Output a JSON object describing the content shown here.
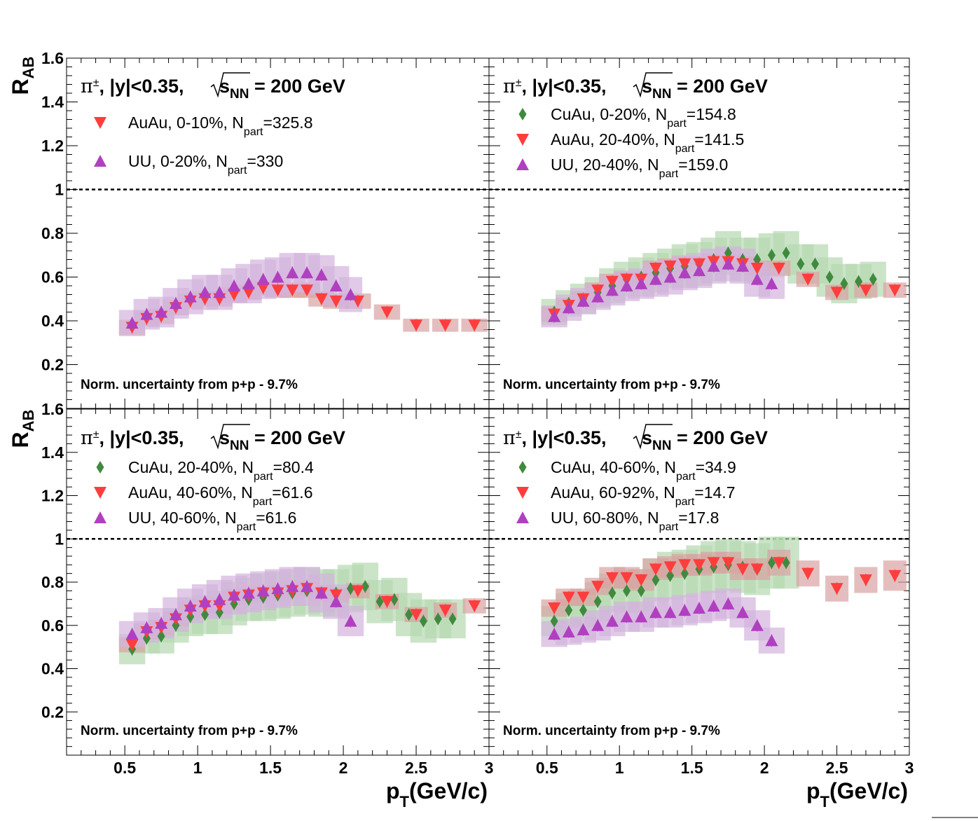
{
  "chart_data": [
    {
      "type": "scatter",
      "title_prefix": "π",
      "title_sup": "±",
      "title_mid": ",  |y|<0.35,  ",
      "title_sqrt": "s",
      "title_sqrt_sub": "NN",
      "title_suffix": " = 200 GeV",
      "norm_text": "Norm. uncertainty from p+p - 9.7%",
      "ylabel": "R",
      "ylabel_sub": "AB",
      "xlim": [
        0.1,
        3.0
      ],
      "ylim": [
        0.0,
        1.6
      ],
      "xticks": [
        "0.5",
        "1",
        "1.5",
        "2",
        "2.5",
        "3"
      ],
      "yticks": [
        "0.2",
        "0.4",
        "0.6",
        "0.8",
        "1",
        "1.2",
        "1.4",
        "1.6"
      ],
      "reference_line": 1,
      "series": [
        {
          "name": "AuAu, 0-10%, N",
          "name_sub": "part",
          "name_tail": "=325.8",
          "marker": "triangle-down",
          "color": "#ff3d3d",
          "band": "#d9a3a3",
          "x": [
            0.55,
            0.65,
            0.75,
            0.85,
            0.95,
            1.05,
            1.15,
            1.25,
            1.35,
            1.45,
            1.55,
            1.65,
            1.75,
            1.85,
            1.95,
            2.1,
            2.3,
            2.5,
            2.7,
            2.9
          ],
          "y": [
            0.37,
            0.41,
            0.42,
            0.46,
            0.49,
            0.5,
            0.5,
            0.52,
            0.53,
            0.55,
            0.54,
            0.54,
            0.54,
            0.5,
            0.49,
            0.49,
            0.44,
            0.38,
            0.38,
            0.38
          ],
          "sys": [
            0.035,
            0.035,
            0.035,
            0.035,
            0.035,
            0.035,
            0.035,
            0.035,
            0.035,
            0.035,
            0.035,
            0.035,
            0.035,
            0.035,
            0.035,
            0.035,
            0.035,
            0.03,
            0.03,
            0.03
          ]
        },
        {
          "name": "UU, 0-20%, N",
          "name_sub": "part",
          "name_tail": "=330",
          "marker": "triangle-up",
          "color": "#b040c0",
          "band": "#d3b3dd",
          "x": [
            0.55,
            0.65,
            0.75,
            0.85,
            0.95,
            1.05,
            1.15,
            1.25,
            1.35,
            1.45,
            1.55,
            1.65,
            1.75,
            1.85,
            1.95,
            2.05
          ],
          "y": [
            0.39,
            0.43,
            0.44,
            0.48,
            0.51,
            0.53,
            0.53,
            0.56,
            0.57,
            0.59,
            0.6,
            0.62,
            0.62,
            0.61,
            0.56,
            0.52
          ],
          "sys": [
            0.06,
            0.07,
            0.07,
            0.07,
            0.08,
            0.08,
            0.08,
            0.08,
            0.09,
            0.09,
            0.09,
            0.09,
            0.09,
            0.09,
            0.09,
            0.08
          ]
        }
      ]
    },
    {
      "type": "scatter",
      "title_prefix": "π",
      "title_sup": "±",
      "title_mid": ",  |y|<0.35,  ",
      "title_sqrt": "s",
      "title_sqrt_sub": "NN",
      "title_suffix": " = 200 GeV",
      "norm_text": "Norm. uncertainty from p+p - 9.7%",
      "xlim": [
        0.1,
        3.0
      ],
      "ylim": [
        0.0,
        1.6
      ],
      "xticks": [
        "0.5",
        "1",
        "1.5",
        "2",
        "2.5",
        "3"
      ],
      "reference_line": 1,
      "series": [
        {
          "name": "CuAu, 0-20%, N",
          "name_sub": "part",
          "name_tail": "=154.8",
          "marker": "diamond",
          "color": "#3f8a3f",
          "band": "#b5d9b0",
          "x": [
            0.55,
            0.65,
            0.75,
            0.85,
            0.95,
            1.05,
            1.15,
            1.25,
            1.35,
            1.45,
            1.55,
            1.65,
            1.75,
            1.85,
            1.95,
            2.05,
            2.15,
            2.25,
            2.35,
            2.45,
            2.55,
            2.65,
            2.75
          ],
          "y": [
            0.44,
            0.48,
            0.5,
            0.53,
            0.56,
            0.59,
            0.6,
            0.62,
            0.64,
            0.65,
            0.66,
            0.68,
            0.71,
            0.68,
            0.68,
            0.7,
            0.71,
            0.66,
            0.66,
            0.6,
            0.57,
            0.58,
            0.59
          ],
          "sys": [
            0.06,
            0.06,
            0.07,
            0.07,
            0.08,
            0.08,
            0.09,
            0.09,
            0.09,
            0.1,
            0.1,
            0.1,
            0.1,
            0.1,
            0.1,
            0.1,
            0.1,
            0.09,
            0.09,
            0.09,
            0.09,
            0.08,
            0.08
          ]
        },
        {
          "name": "AuAu, 20-40%, N",
          "name_sub": "part",
          "name_tail": "=141.5",
          "marker": "triangle-down",
          "color": "#ff3d3d",
          "band": "#d9a3a3",
          "x": [
            0.55,
            0.65,
            0.75,
            0.85,
            0.95,
            1.05,
            1.15,
            1.25,
            1.35,
            1.45,
            1.55,
            1.65,
            1.75,
            1.85,
            1.95,
            2.1,
            2.3,
            2.5,
            2.7,
            2.9
          ],
          "y": [
            0.43,
            0.47,
            0.5,
            0.54,
            0.58,
            0.59,
            0.59,
            0.64,
            0.65,
            0.66,
            0.66,
            0.67,
            0.67,
            0.66,
            0.64,
            0.64,
            0.59,
            0.53,
            0.54,
            0.54
          ],
          "sys": [
            0.035,
            0.035,
            0.035,
            0.035,
            0.035,
            0.035,
            0.035,
            0.035,
            0.035,
            0.035,
            0.035,
            0.035,
            0.035,
            0.035,
            0.035,
            0.035,
            0.035,
            0.035,
            0.035,
            0.035
          ]
        },
        {
          "name": "UU, 20-40%, N",
          "name_sub": "part",
          "name_tail": "=159.0",
          "marker": "triangle-up",
          "color": "#b040c0",
          "band": "#d3b3dd",
          "x": [
            0.55,
            0.65,
            0.75,
            0.85,
            0.95,
            1.05,
            1.15,
            1.25,
            1.35,
            1.45,
            1.55,
            1.65,
            1.75,
            1.85,
            1.95,
            2.05
          ],
          "y": [
            0.42,
            0.46,
            0.49,
            0.51,
            0.54,
            0.56,
            0.57,
            0.59,
            0.6,
            0.62,
            0.63,
            0.65,
            0.66,
            0.65,
            0.59,
            0.57
          ],
          "sys": [
            0.05,
            0.06,
            0.06,
            0.06,
            0.07,
            0.07,
            0.07,
            0.08,
            0.08,
            0.08,
            0.08,
            0.08,
            0.08,
            0.08,
            0.08,
            0.07
          ]
        }
      ]
    },
    {
      "type": "scatter",
      "title_prefix": "π",
      "title_sup": "±",
      "title_mid": ",  |y|<0.35,  ",
      "title_sqrt": "s",
      "title_sqrt_sub": "NN",
      "title_suffix": " = 200 GeV",
      "norm_text": "Norm. uncertainty from p+p - 9.7%",
      "ylabel": "R",
      "ylabel_sub": "AB",
      "xlabel": "p",
      "xlabel_sub": "T",
      "xlabel_tail": "(GeV/c)",
      "xlim": [
        0.1,
        3.0
      ],
      "ylim": [
        0.0,
        1.6
      ],
      "xticks": [
        "0.5",
        "1",
        "1.5",
        "2",
        "2.5",
        "3"
      ],
      "yticks": [
        "0.2",
        "0.4",
        "0.6",
        "0.8",
        "1",
        "1.2",
        "1.4",
        "1.6"
      ],
      "reference_line": 1,
      "series": [
        {
          "name": "CuAu, 20-40%, N",
          "name_sub": "part",
          "name_tail": "=80.4",
          "marker": "diamond",
          "color": "#3f8a3f",
          "band": "#b5d9b0",
          "x": [
            0.55,
            0.65,
            0.75,
            0.85,
            0.95,
            1.05,
            1.15,
            1.25,
            1.35,
            1.45,
            1.55,
            1.65,
            1.75,
            1.85,
            1.95,
            2.05,
            2.15,
            2.25,
            2.35,
            2.45,
            2.55,
            2.65,
            2.75
          ],
          "y": [
            0.49,
            0.54,
            0.55,
            0.6,
            0.64,
            0.65,
            0.66,
            0.7,
            0.72,
            0.73,
            0.74,
            0.75,
            0.76,
            0.75,
            0.75,
            0.77,
            0.78,
            0.71,
            0.72,
            0.65,
            0.62,
            0.63,
            0.63
          ],
          "sys": [
            0.07,
            0.07,
            0.08,
            0.08,
            0.09,
            0.09,
            0.1,
            0.1,
            0.1,
            0.11,
            0.11,
            0.11,
            0.11,
            0.11,
            0.11,
            0.11,
            0.11,
            0.1,
            0.1,
            0.1,
            0.1,
            0.09,
            0.09
          ]
        },
        {
          "name": "AuAu, 40-60%, N",
          "name_sub": "part",
          "name_tail": "=61.6",
          "marker": "triangle-down",
          "color": "#ff3d3d",
          "band": "#d9a3a3",
          "x": [
            0.55,
            0.65,
            0.75,
            0.85,
            0.95,
            1.05,
            1.15,
            1.25,
            1.35,
            1.45,
            1.55,
            1.65,
            1.75,
            1.85,
            1.95,
            2.1,
            2.3,
            2.5,
            2.7,
            2.9
          ],
          "y": [
            0.51,
            0.57,
            0.59,
            0.63,
            0.67,
            0.69,
            0.69,
            0.73,
            0.74,
            0.75,
            0.75,
            0.76,
            0.77,
            0.75,
            0.74,
            0.76,
            0.71,
            0.65,
            0.67,
            0.69
          ],
          "sys": [
            0.035,
            0.035,
            0.035,
            0.035,
            0.035,
            0.035,
            0.035,
            0.035,
            0.035,
            0.035,
            0.035,
            0.035,
            0.035,
            0.035,
            0.035,
            0.035,
            0.035,
            0.035,
            0.035,
            0.035
          ]
        },
        {
          "name": "UU, 40-60%, N",
          "name_sub": "part",
          "name_tail": "=61.6",
          "marker": "triangle-up",
          "color": "#b040c0",
          "band": "#d3b3dd",
          "x": [
            0.55,
            0.65,
            0.75,
            0.85,
            0.95,
            1.05,
            1.15,
            1.25,
            1.35,
            1.45,
            1.55,
            1.65,
            1.75,
            1.85,
            1.95,
            2.05
          ],
          "y": [
            0.56,
            0.59,
            0.61,
            0.65,
            0.69,
            0.71,
            0.72,
            0.74,
            0.75,
            0.76,
            0.77,
            0.78,
            0.78,
            0.75,
            0.71,
            0.62
          ],
          "sys": [
            0.06,
            0.07,
            0.07,
            0.08,
            0.08,
            0.08,
            0.09,
            0.09,
            0.09,
            0.09,
            0.09,
            0.09,
            0.09,
            0.09,
            0.08,
            0.07
          ]
        }
      ]
    },
    {
      "type": "scatter",
      "title_prefix": "π",
      "title_sup": "±",
      "title_mid": ",  |y|<0.35,  ",
      "title_sqrt": "s",
      "title_sqrt_sub": "NN",
      "title_suffix": " = 200 GeV",
      "norm_text": "Norm. uncertainty from p+p - 9.7%",
      "xlabel": "p",
      "xlabel_sub": "T",
      "xlabel_tail": "(GeV/c)",
      "xlim": [
        0.1,
        3.0
      ],
      "ylim": [
        0.0,
        1.6
      ],
      "xticks": [
        "0.5",
        "1",
        "1.5",
        "2",
        "2.5",
        "3"
      ],
      "reference_line": 1,
      "series": [
        {
          "name": "CuAu, 40-60%, N",
          "name_sub": "part",
          "name_tail": "=34.9",
          "marker": "diamond",
          "color": "#3f8a3f",
          "band": "#b5d9b0",
          "x": [
            0.55,
            0.65,
            0.75,
            0.85,
            0.95,
            1.05,
            1.15,
            1.25,
            1.35,
            1.45,
            1.55,
            1.65,
            1.75,
            1.85,
            1.95,
            2.05,
            2.15
          ],
          "y": [
            0.62,
            0.67,
            0.67,
            0.71,
            0.75,
            0.76,
            0.76,
            0.81,
            0.83,
            0.84,
            0.86,
            0.87,
            0.88,
            0.87,
            0.86,
            0.89,
            0.89
          ],
          "sys": [
            0.07,
            0.08,
            0.08,
            0.09,
            0.09,
            0.1,
            0.1,
            0.1,
            0.11,
            0.11,
            0.11,
            0.12,
            0.12,
            0.12,
            0.12,
            0.12,
            0.12
          ]
        },
        {
          "name": "AuAu, 60-92%, N",
          "name_sub": "part",
          "name_tail": "=14.7",
          "marker": "triangle-down",
          "color": "#ff3d3d",
          "band": "#d9a3a3",
          "x": [
            0.55,
            0.65,
            0.75,
            0.85,
            0.95,
            1.05,
            1.15,
            1.25,
            1.35,
            1.45,
            1.55,
            1.65,
            1.75,
            1.85,
            1.95,
            2.1,
            2.3,
            2.5,
            2.7,
            2.9
          ],
          "y": [
            0.68,
            0.73,
            0.73,
            0.78,
            0.82,
            0.82,
            0.81,
            0.86,
            0.87,
            0.88,
            0.88,
            0.89,
            0.89,
            0.86,
            0.86,
            0.89,
            0.84,
            0.77,
            0.81,
            0.83
          ],
          "sys": [
            0.04,
            0.04,
            0.04,
            0.04,
            0.05,
            0.05,
            0.05,
            0.05,
            0.05,
            0.05,
            0.05,
            0.05,
            0.05,
            0.05,
            0.05,
            0.06,
            0.06,
            0.06,
            0.06,
            0.07
          ]
        },
        {
          "name": "UU, 60-80%, N",
          "name_sub": "part",
          "name_tail": "=17.8",
          "marker": "triangle-up",
          "color": "#b040c0",
          "band": "#d3b3dd",
          "x": [
            0.55,
            0.65,
            0.75,
            0.85,
            0.95,
            1.05,
            1.15,
            1.25,
            1.35,
            1.45,
            1.55,
            1.65,
            1.75,
            1.85,
            1.95,
            2.05
          ],
          "y": [
            0.56,
            0.57,
            0.58,
            0.6,
            0.62,
            0.64,
            0.64,
            0.66,
            0.66,
            0.67,
            0.68,
            0.69,
            0.7,
            0.66,
            0.6,
            0.53
          ],
          "sys": [
            0.06,
            0.06,
            0.06,
            0.07,
            0.07,
            0.07,
            0.07,
            0.07,
            0.07,
            0.07,
            0.07,
            0.07,
            0.07,
            0.07,
            0.07,
            0.06
          ]
        }
      ]
    }
  ]
}
